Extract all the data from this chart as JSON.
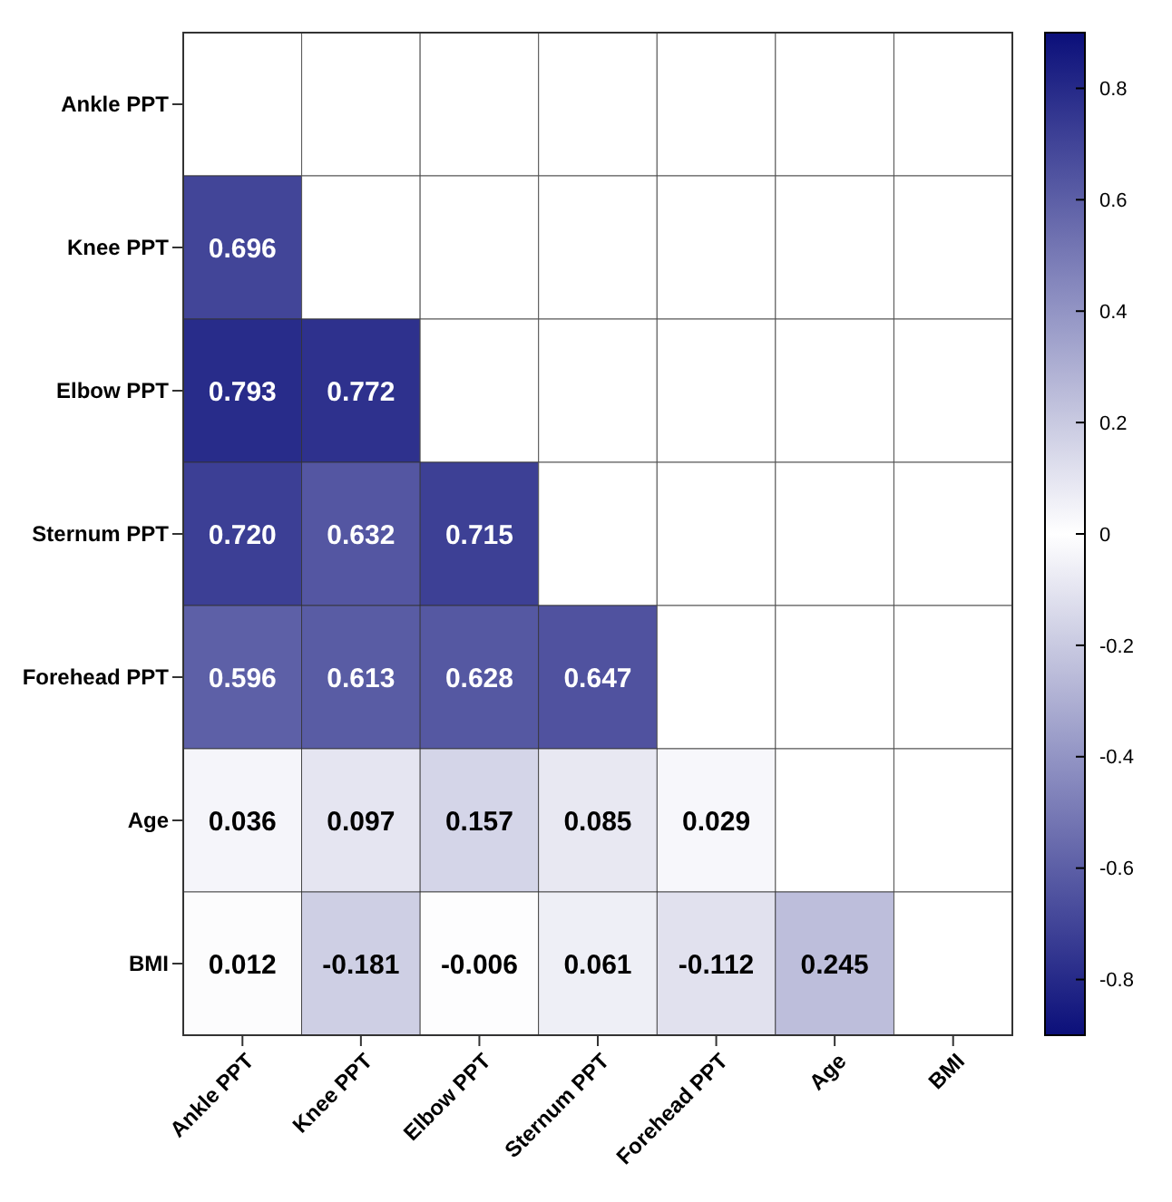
{
  "chart_data": {
    "type": "heatmap",
    "categories": [
      "Ankle PPT",
      "Knee PPT",
      "Elbow PPT",
      "Sternum PPT",
      "Forehead PPT",
      "Age",
      "BMI"
    ],
    "y_categories": [
      "Ankle PPT",
      "Knee PPT",
      "Elbow PPT",
      "Sternum PPT",
      "Forehead PPT",
      "Age",
      "BMI"
    ],
    "cells": [
      [
        null,
        null,
        null,
        null,
        null,
        null,
        null
      ],
      [
        0.696,
        null,
        null,
        null,
        null,
        null,
        null
      ],
      [
        0.793,
        0.772,
        null,
        null,
        null,
        null,
        null
      ],
      [
        0.72,
        0.632,
        0.715,
        null,
        null,
        null,
        null
      ],
      [
        0.596,
        0.613,
        0.628,
        0.647,
        null,
        null,
        null
      ],
      [
        0.036,
        0.097,
        0.157,
        0.085,
        0.029,
        null,
        null
      ],
      [
        0.012,
        -0.181,
        -0.006,
        0.061,
        -0.112,
        0.245,
        null
      ]
    ],
    "cell_labels": [
      [
        null,
        null,
        null,
        null,
        null,
        null,
        null
      ],
      [
        "0.696",
        null,
        null,
        null,
        null,
        null,
        null
      ],
      [
        "0.793",
        "0.772",
        null,
        null,
        null,
        null,
        null
      ],
      [
        "0.720",
        "0.632",
        "0.715",
        null,
        null,
        null,
        null
      ],
      [
        "0.596",
        "0.613",
        "0.628",
        "0.647",
        null,
        null,
        null
      ],
      [
        "0.036",
        "0.097",
        "0.157",
        "0.085",
        "0.029",
        null,
        null
      ],
      [
        "0.012",
        "-0.181",
        "-0.006",
        "0.061",
        "-0.112",
        "0.245",
        null
      ]
    ],
    "clim": [
      -0.9,
      0.9
    ],
    "cticks": [
      -0.8,
      -0.6,
      -0.4,
      -0.2,
      0,
      0.2,
      0.4,
      0.6,
      0.8
    ]
  }
}
